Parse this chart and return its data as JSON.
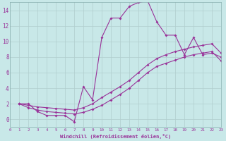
{
  "xlabel": "Windchill (Refroidissement éolien,°C)",
  "background_color": "#c8e8e8",
  "grid_color": "#b0cece",
  "line_color": "#993399",
  "x_min": 0,
  "x_max": 23,
  "y_min": -1,
  "y_max": 15,
  "yticks": [
    0,
    2,
    4,
    6,
    8,
    10,
    12,
    14
  ],
  "xticks": [
    0,
    1,
    2,
    3,
    4,
    5,
    6,
    7,
    8,
    9,
    10,
    11,
    12,
    13,
    14,
    15,
    16,
    17,
    18,
    19,
    20,
    21,
    22,
    23
  ],
  "line1_x": [
    1,
    2,
    3,
    4,
    5,
    6,
    7,
    8,
    9,
    10,
    11,
    12,
    13,
    14,
    15,
    16,
    17,
    18,
    19,
    20,
    21,
    22,
    23
  ],
  "line1_y": [
    2,
    2,
    1,
    0.5,
    0.5,
    0.5,
    -0.3,
    4.2,
    2.5,
    10.5,
    13.0,
    13.0,
    14.5,
    15.0,
    15.2,
    12.5,
    10.8,
    10.8,
    8.3,
    10.5,
    8.3,
    8.5,
    8.0
  ],
  "line2_x": [
    1,
    2,
    3,
    4,
    5,
    6,
    7,
    8,
    9,
    10,
    11,
    12,
    13,
    14,
    15,
    16,
    17,
    18,
    19,
    20,
    21,
    22,
    23
  ],
  "line2_y": [
    2.0,
    1.8,
    1.6,
    1.5,
    1.4,
    1.3,
    1.2,
    1.5,
    2.0,
    2.8,
    3.5,
    4.2,
    5.0,
    6.0,
    7.0,
    7.8,
    8.3,
    8.7,
    9.0,
    9.3,
    9.5,
    9.7,
    8.5
  ],
  "line3_x": [
    1,
    2,
    3,
    4,
    5,
    6,
    7,
    8,
    9,
    10,
    11,
    12,
    13,
    14,
    15,
    16,
    17,
    18,
    19,
    20,
    21,
    22,
    23
  ],
  "line3_y": [
    2.0,
    1.5,
    1.2,
    1.0,
    0.9,
    0.8,
    0.7,
    0.9,
    1.3,
    1.8,
    2.5,
    3.2,
    4.0,
    5.0,
    6.0,
    6.8,
    7.2,
    7.6,
    8.0,
    8.3,
    8.5,
    8.7,
    7.5
  ]
}
